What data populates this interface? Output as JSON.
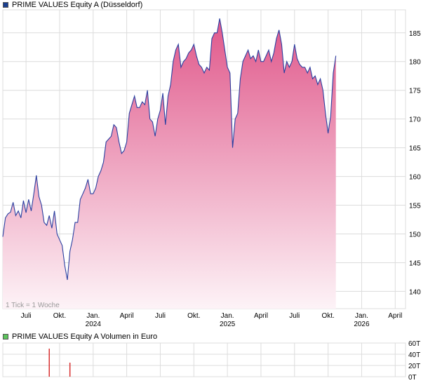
{
  "header": {
    "price_legend": "PRIME VALUES Equity A (Düsseldorf)",
    "volume_legend": "PRIME VALUES Equity A Volumen in Euro",
    "price_legend_color": "#1a3f8f",
    "volume_legend_color": "#5cc45c"
  },
  "tick_note": "1 Tick = 1 Woche",
  "colors": {
    "line": "#2a3fa0",
    "fill_top": "#e0578a",
    "fill_bottom": "#fdf3f7",
    "grid": "#dcdcdc",
    "volume_bar": "#d83030"
  },
  "chart_data": [
    {
      "type": "area",
      "title": "PRIME VALUES Equity A (Düsseldorf)",
      "ylim": [
        137,
        189
      ],
      "yticks": [
        140,
        145,
        150,
        155,
        160,
        165,
        170,
        175,
        180,
        185
      ],
      "x_tick_labels": [
        {
          "label": "Juli",
          "year": "",
          "week": 9
        },
        {
          "label": "Okt.",
          "year": "",
          "week": 22
        },
        {
          "label": "Jan.",
          "year": "2024",
          "week": 35
        },
        {
          "label": "April",
          "year": "",
          "week": 48
        },
        {
          "label": "Juli",
          "year": "",
          "week": 61
        },
        {
          "label": "Okt.",
          "year": "",
          "week": 74
        },
        {
          "label": "Jan.",
          "year": "2025",
          "week": 87
        },
        {
          "label": "April",
          "year": "",
          "week": 100
        },
        {
          "label": "Juli",
          "year": "",
          "week": 113
        },
        {
          "label": "Okt.",
          "year": "",
          "week": 126
        },
        {
          "label": "Jan.",
          "year": "2026",
          "week": 139
        },
        {
          "label": "April",
          "year": "",
          "week": 152
        }
      ],
      "x_range": [
        0,
        156
      ],
      "values": [
        149.5,
        152.8,
        153.5,
        153.8,
        155.5,
        153.2,
        154.0,
        152.8,
        155.8,
        153.7,
        156.0,
        154.0,
        157.0,
        160.2,
        156.5,
        155.0,
        152.0,
        151.5,
        153.2,
        151.0,
        154.0,
        150.0,
        149.0,
        148.0,
        144.5,
        142.0,
        147.0,
        149.0,
        152.0,
        152.0,
        156.0,
        157.0,
        158.0,
        159.5,
        157.0,
        157.0,
        158.0,
        160.0,
        161.0,
        162.5,
        166.0,
        166.5,
        167.0,
        169.0,
        168.5,
        166.0,
        164.0,
        164.5,
        166.0,
        171.0,
        172.5,
        174.0,
        172.0,
        172.0,
        173.0,
        172.5,
        175.0,
        170.0,
        169.5,
        167.0,
        170.0,
        171.5,
        174.5,
        169.0,
        174.0,
        176.0,
        180.0,
        182.0,
        183.0,
        179.0,
        180.0,
        180.5,
        181.5,
        182.0,
        183.0,
        181.0,
        179.5,
        179.0,
        178.0,
        179.0,
        178.5,
        184.0,
        185.0,
        185.0,
        187.5,
        185.0,
        182.0,
        179.0,
        178.0,
        165.0,
        170.0,
        171.0,
        177.0,
        180.0,
        181.0,
        182.0,
        180.5,
        181.0,
        180.0,
        182.0,
        180.0,
        180.0,
        181.0,
        182.0,
        180.0,
        181.5,
        184.0,
        185.5,
        183.0,
        178.0,
        180.0,
        179.0,
        180.0,
        183.0,
        180.5,
        179.5,
        179.0,
        179.0,
        178.0,
        179.0,
        177.0,
        177.5,
        176.0,
        177.0,
        175.0,
        171.0,
        167.5,
        170.5,
        178.0,
        181.0
      ],
      "grid": true
    },
    {
      "type": "bar",
      "title": "PRIME VALUES Equity A Volumen in Euro",
      "ylabel": "",
      "ylim": [
        0,
        60
      ],
      "yticks": [
        0,
        20,
        40,
        60
      ],
      "ytick_labels": [
        "0T",
        "20T",
        "40T",
        "60T"
      ],
      "bars": [
        {
          "week": 18,
          "value": 50
        },
        {
          "week": 26,
          "value": 25
        }
      ],
      "grid": true
    }
  ]
}
